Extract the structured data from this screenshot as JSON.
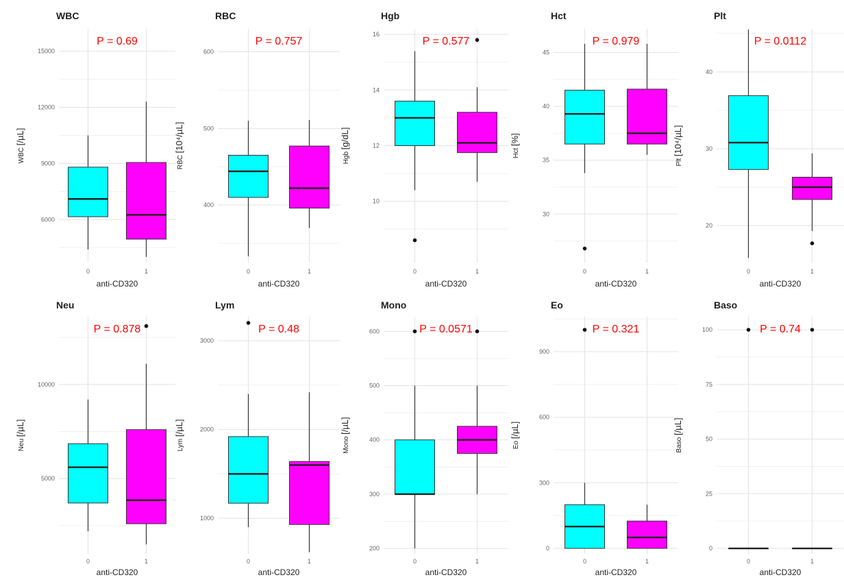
{
  "colors": {
    "group0_fill": "#00ffff",
    "group1_fill": "#ff00ff",
    "pvalue_text": "#ff0000",
    "box_stroke": "#333333",
    "grid_major": "#e3e3e3",
    "grid_minor": "#f1f1f1"
  },
  "chart_data": [
    {
      "type": "box",
      "title": "WBC",
      "ylabel_prefix": "WBC",
      "ylabel_unit": "[/µL]",
      "xlabel": "anti-CD320",
      "x_ticks": [
        "0",
        "1"
      ],
      "pvalue": "P = 0.69",
      "ylim": [
        3700,
        16200
      ],
      "yticks": [
        6000,
        9000,
        12000,
        15000
      ],
      "yticklabels": [
        "6000",
        "9000",
        "12000",
        "15000"
      ],
      "groups": [
        {
          "name": "0",
          "whisker_low": 4400,
          "q1": 6150,
          "median": 7100,
          "q3": 8800,
          "whisker_high": 10500,
          "outliers": []
        },
        {
          "name": "1",
          "whisker_low": 4000,
          "q1": 4950,
          "median": 6250,
          "q3": 9050,
          "whisker_high": 12300,
          "outliers": []
        }
      ]
    },
    {
      "type": "box",
      "title": "RBC",
      "ylabel_prefix": "RBC",
      "ylabel_unit": "[10⁴/µL]",
      "xlabel": "anti-CD320",
      "x_ticks": [
        "0",
        "1"
      ],
      "pvalue": "P = 0.757",
      "ylim": [
        325,
        630
      ],
      "yticks": [
        400,
        500,
        600
      ],
      "yticklabels": [
        "400",
        "500",
        "600"
      ],
      "groups": [
        {
          "name": "0",
          "whisker_low": 333,
          "q1": 410,
          "median": 444,
          "q3": 465,
          "whisker_high": 510,
          "outliers": []
        },
        {
          "name": "1",
          "whisker_low": 370,
          "q1": 396,
          "median": 422,
          "q3": 477,
          "whisker_high": 511,
          "outliers": []
        }
      ]
    },
    {
      "type": "box",
      "title": "Hgb",
      "ylabel_prefix": "Hgb",
      "ylabel_unit": "[g/dL]",
      "xlabel": "anti-CD320",
      "x_ticks": [
        "0",
        "1"
      ],
      "pvalue": "P = 0.577",
      "ylim": [
        7.8,
        16.2
      ],
      "yticks": [
        10,
        12,
        14,
        16
      ],
      "yticklabels": [
        "10",
        "12",
        "14",
        "16"
      ],
      "groups": [
        {
          "name": "0",
          "whisker_low": 10.4,
          "q1": 12.0,
          "median": 13.0,
          "q3": 13.6,
          "whisker_high": 15.4,
          "outliers": [
            8.6
          ]
        },
        {
          "name": "1",
          "whisker_low": 10.7,
          "q1": 11.75,
          "median": 12.1,
          "q3": 13.2,
          "whisker_high": 14.1,
          "outliers": [
            15.8
          ]
        }
      ]
    },
    {
      "type": "box",
      "title": "Hct",
      "ylabel_prefix": "Hct",
      "ylabel_unit": "[%]",
      "xlabel": "anti-CD320",
      "x_ticks": [
        "0",
        "1"
      ],
      "pvalue": "P = 0.979",
      "ylim": [
        25.5,
        47.2
      ],
      "yticks": [
        30,
        35,
        40,
        45
      ],
      "yticklabels": [
        "30",
        "35",
        "40",
        "45"
      ],
      "groups": [
        {
          "name": "0",
          "whisker_low": 33.8,
          "q1": 36.5,
          "median": 39.3,
          "q3": 41.5,
          "whisker_high": 45.8,
          "outliers": [
            26.8
          ]
        },
        {
          "name": "1",
          "whisker_low": 35.5,
          "q1": 36.5,
          "median": 37.5,
          "q3": 41.6,
          "whisker_high": 45.8,
          "outliers": []
        }
      ]
    },
    {
      "type": "box",
      "title": "Plt",
      "ylabel_prefix": "Plt",
      "ylabel_unit": "[10⁴/µL]",
      "xlabel": "anti-CD320",
      "x_ticks": [
        "0",
        "1"
      ],
      "pvalue": "P = 0.0112",
      "ylim": [
        15.2,
        45.6
      ],
      "yticks": [
        20,
        30,
        40
      ],
      "yticklabels": [
        "20",
        "30",
        "40"
      ],
      "groups": [
        {
          "name": "0",
          "whisker_low": 15.8,
          "q1": 27.3,
          "median": 30.8,
          "q3": 36.9,
          "whisker_high": 45.5,
          "outliers": []
        },
        {
          "name": "1",
          "whisker_low": 19.3,
          "q1": 23.4,
          "median": 25.0,
          "q3": 26.3,
          "whisker_high": 29.4,
          "outliers": [
            17.7
          ]
        }
      ]
    },
    {
      "type": "box",
      "title": "Neu",
      "ylabel_prefix": "Neu",
      "ylabel_unit": "[/µL]",
      "xlabel": "anti-CD320",
      "x_ticks": [
        "0",
        "1"
      ],
      "pvalue": "P = 0.878",
      "ylim": [
        1000,
        13600
      ],
      "yticks": [
        5000,
        10000
      ],
      "yticklabels": [
        "5000",
        "10000"
      ],
      "groups": [
        {
          "name": "0",
          "whisker_low": 2200,
          "q1": 3700,
          "median": 5600,
          "q3": 6850,
          "whisker_high": 9200,
          "outliers": []
        },
        {
          "name": "1",
          "whisker_low": 1500,
          "q1": 2600,
          "median": 3850,
          "q3": 7600,
          "whisker_high": 11100,
          "outliers": [
            13100
          ]
        }
      ]
    },
    {
      "type": "box",
      "title": "Lym",
      "ylabel_prefix": "Lym",
      "ylabel_unit": "[/µL]",
      "xlabel": "anti-CD320",
      "x_ticks": [
        "0",
        "1"
      ],
      "pvalue": "P = 0.48",
      "ylim": [
        600,
        3270
      ],
      "yticks": [
        1000,
        2000,
        3000
      ],
      "yticklabels": [
        "1000",
        "2000",
        "3000"
      ],
      "groups": [
        {
          "name": "0",
          "whisker_low": 900,
          "q1": 1170,
          "median": 1500,
          "q3": 1920,
          "whisker_high": 2400,
          "outliers": [
            3200
          ]
        },
        {
          "name": "1",
          "whisker_low": 620,
          "q1": 930,
          "median": 1600,
          "q3": 1640,
          "whisker_high": 2420,
          "outliers": []
        }
      ]
    },
    {
      "type": "box",
      "title": "Mono",
      "ylabel_prefix": "Mono",
      "ylabel_unit": "[/µL]",
      "xlabel": "anti-CD320",
      "x_ticks": [
        "0",
        "1"
      ],
      "pvalue": "P = 0.0571",
      "ylim": [
        190,
        627
      ],
      "yticks": [
        200,
        300,
        400,
        500,
        600
      ],
      "yticklabels": [
        "200",
        "300",
        "400",
        "500",
        "600"
      ],
      "groups": [
        {
          "name": "0",
          "whisker_low": 200,
          "q1": 300,
          "median": 300,
          "q3": 400,
          "whisker_high": 500,
          "outliers": [
            600
          ]
        },
        {
          "name": "1",
          "whisker_low": 300,
          "q1": 375,
          "median": 400,
          "q3": 425,
          "whisker_high": 500,
          "outliers": [
            600
          ]
        }
      ]
    },
    {
      "type": "box",
      "title": "Eo",
      "ylabel_prefix": "Eo",
      "ylabel_unit": "[/µL]",
      "xlabel": "anti-CD320",
      "x_ticks": [
        "0",
        "1"
      ],
      "pvalue": "P = 0.321",
      "ylim": [
        -25,
        1060
      ],
      "yticks": [
        0,
        300,
        600,
        900
      ],
      "yticklabels": [
        "0",
        "300",
        "600",
        "900"
      ],
      "groups": [
        {
          "name": "0",
          "whisker_low": 0,
          "q1": 0,
          "median": 100,
          "q3": 200,
          "whisker_high": 300,
          "outliers": [
            1000
          ]
        },
        {
          "name": "1",
          "whisker_low": 0,
          "q1": 0,
          "median": 50,
          "q3": 125,
          "whisker_high": 200,
          "outliers": []
        }
      ]
    },
    {
      "type": "box",
      "title": "Baso",
      "ylabel_prefix": "Baso",
      "ylabel_unit": "[/µL]",
      "xlabel": "anti-CD320",
      "x_ticks": [
        "0",
        "1"
      ],
      "pvalue": "P = 0.74",
      "ylim": [
        -2.5,
        106
      ],
      "yticks": [
        0,
        25,
        50,
        75,
        100
      ],
      "yticklabels": [
        "0",
        "25",
        "50",
        "75",
        "100"
      ],
      "groups": [
        {
          "name": "0",
          "whisker_low": 0,
          "q1": 0,
          "median": 0,
          "q3": 0,
          "whisker_high": 0,
          "outliers": [
            100
          ]
        },
        {
          "name": "1",
          "whisker_low": 0,
          "q1": 0,
          "median": 0,
          "q3": 0,
          "whisker_high": 0,
          "outliers": [
            100
          ]
        }
      ]
    }
  ]
}
